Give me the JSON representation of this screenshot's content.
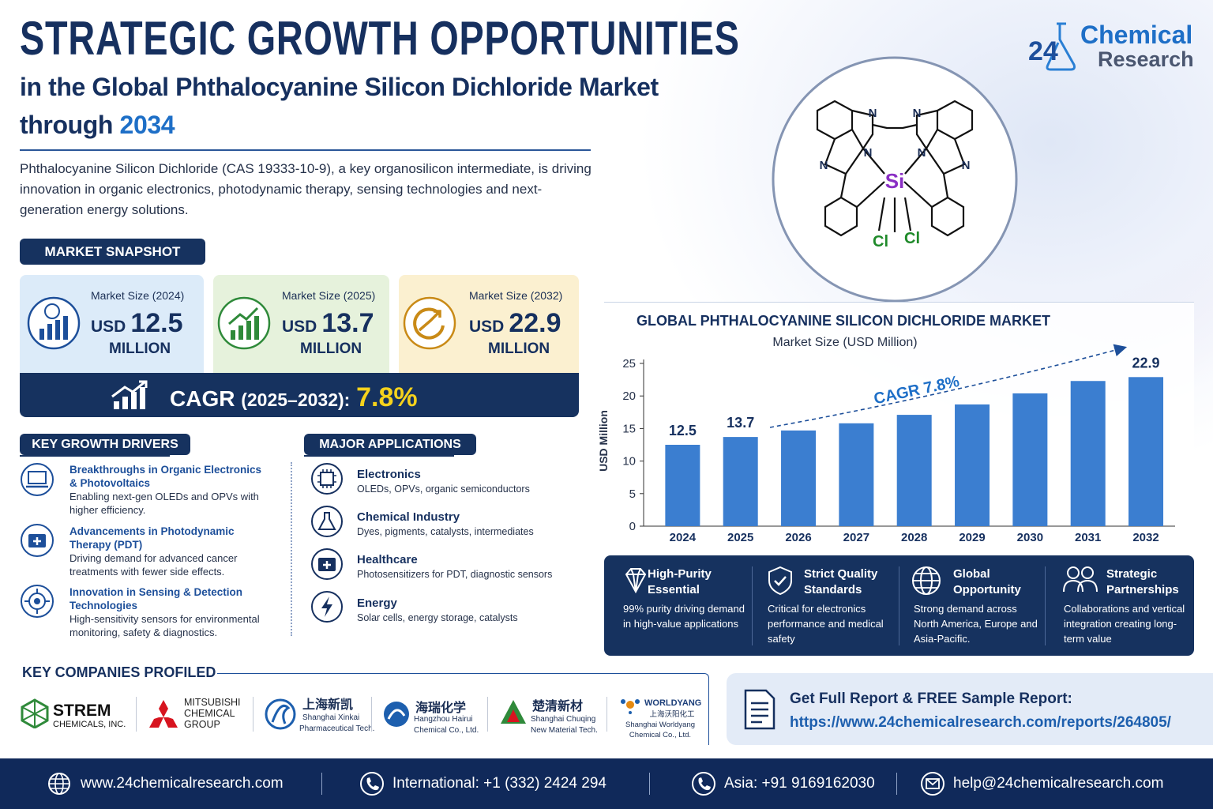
{
  "header": {
    "title": "STRATEGIC GROWTH OPPORTUNITIES",
    "subtitle": "in the Global Phthalocyanine Silicon Dichloride Market",
    "subtitle2_prefix": "through",
    "subtitle2_year": "2034"
  },
  "description": "Phthalocyanine Silicon Dichloride (CAS 19333-10-9), a key organosilicon intermediate, is driving innovation in organic electronics, photodynamic therapy, sensing technologies and next-generation energy solutions.",
  "logo": {
    "number": "24",
    "line1": "Chemical",
    "line2": "Research"
  },
  "molecule": {
    "nitrogen": "N",
    "center": "Si",
    "ligand": "Cl"
  },
  "snapshot": {
    "heading": "MARKET SNAPSHOT",
    "cards": [
      {
        "label": "Market Size (2024)",
        "currency": "USD",
        "value": "12.5",
        "unit": "MILLION"
      },
      {
        "label": "Market Size (2025)",
        "currency": "USD",
        "value": "13.7",
        "unit": "MILLION"
      },
      {
        "label": "Market Size (2032)",
        "currency": "USD",
        "value": "22.9",
        "unit": "MILLION"
      }
    ],
    "cagr": {
      "label": "CAGR",
      "period": "(2025–2032):",
      "value": "7.8%"
    }
  },
  "drivers": {
    "heading": "KEY GROWTH DRIVERS",
    "items": [
      {
        "title": "Breakthroughs in Organic Electronics & Photovoltaics",
        "text": "Enabling next-gen OLEDs and OPVs with higher efficiency."
      },
      {
        "title": "Advancements in Photodynamic Therapy (PDT)",
        "text": "Driving demand for advanced cancer treatments with fewer side effects."
      },
      {
        "title": "Innovation in Sensing & Detection Technologies",
        "text": "High-sensitivity sensors for environmental monitoring, safety & diagnostics."
      }
    ]
  },
  "applications": {
    "heading": "MAJOR APPLICATIONS",
    "items": [
      {
        "title": "Electronics",
        "text": "OLEDs, OPVs, organic semiconductors"
      },
      {
        "title": "Chemical Industry",
        "text": "Dyes, pigments, catalysts, intermediates"
      },
      {
        "title": "Healthcare",
        "text": "Photosensitizers for PDT, diagnostic sensors"
      },
      {
        "title": "Energy",
        "text": "Solar cells, energy storage, catalysts"
      }
    ]
  },
  "chart_data": {
    "type": "bar",
    "title": "GLOBAL PHTHALOCYANINE SILICON DICHLORIDE MARKET",
    "subtitle": "Market Size (USD Million)",
    "y_label": "USD Million",
    "categories": [
      "2024",
      "2025",
      "2026",
      "2027",
      "2028",
      "2029",
      "2030",
      "2031",
      "2032"
    ],
    "values": [
      12.5,
      13.7,
      14.7,
      15.8,
      17.1,
      18.7,
      20.4,
      22.3,
      22.9
    ],
    "value_labels": [
      "12.5",
      "13.7",
      null,
      null,
      null,
      null,
      null,
      null,
      "22.9"
    ],
    "color": "#3b7ed0",
    "ylim": [
      0,
      25
    ],
    "yticks": [
      0,
      5,
      10,
      15,
      20,
      25
    ],
    "grid": false,
    "annotation": "CAGR 7.8%"
  },
  "features": [
    {
      "title": "High-Purity Essential",
      "text": "99% purity driving demand in high-value applications"
    },
    {
      "title": "Strict Quality Standards",
      "text": "Critical for electronics performance and medical safety"
    },
    {
      "title": "Global Opportunity",
      "text": "Strong demand across North America, Europe and Asia-Pacific."
    },
    {
      "title": "Strategic Partnerships",
      "text": "Collaborations and vertical integration creating long-term value"
    }
  ],
  "companies": {
    "heading": "KEY COMPANIES PROFILED",
    "items": [
      {
        "lines": [
          "STREM",
          "CHEMICALS, INC."
        ]
      },
      {
        "lines": [
          "MITSUBISHI",
          "CHEMICAL",
          "GROUP"
        ]
      },
      {
        "lines": [
          "上海新凯",
          "Shanghai Xinkai",
          "Pharmaceutical Tech."
        ]
      },
      {
        "lines": [
          "海瑞化学",
          "Hangzhou Hairui",
          "Chemical Co., Ltd."
        ]
      },
      {
        "lines": [
          "楚清新材",
          "Shanghai Chuqing",
          "New Material Tech."
        ]
      },
      {
        "lines": [
          "WORLDYANG",
          "上海沃阳化工",
          "Shanghai Worldyang",
          "Chemical Co., Ltd."
        ]
      }
    ]
  },
  "report": {
    "title": "Get Full Report & FREE Sample Report:",
    "url": "https://www.24chemicalresearch.com/reports/264805/"
  },
  "footer": {
    "website": "www.24chemicalresearch.com",
    "international": "International: +1 (332) 2424 294",
    "asia": "Asia: +91 9169162030",
    "email": "help@24chemicalresearch.com"
  }
}
